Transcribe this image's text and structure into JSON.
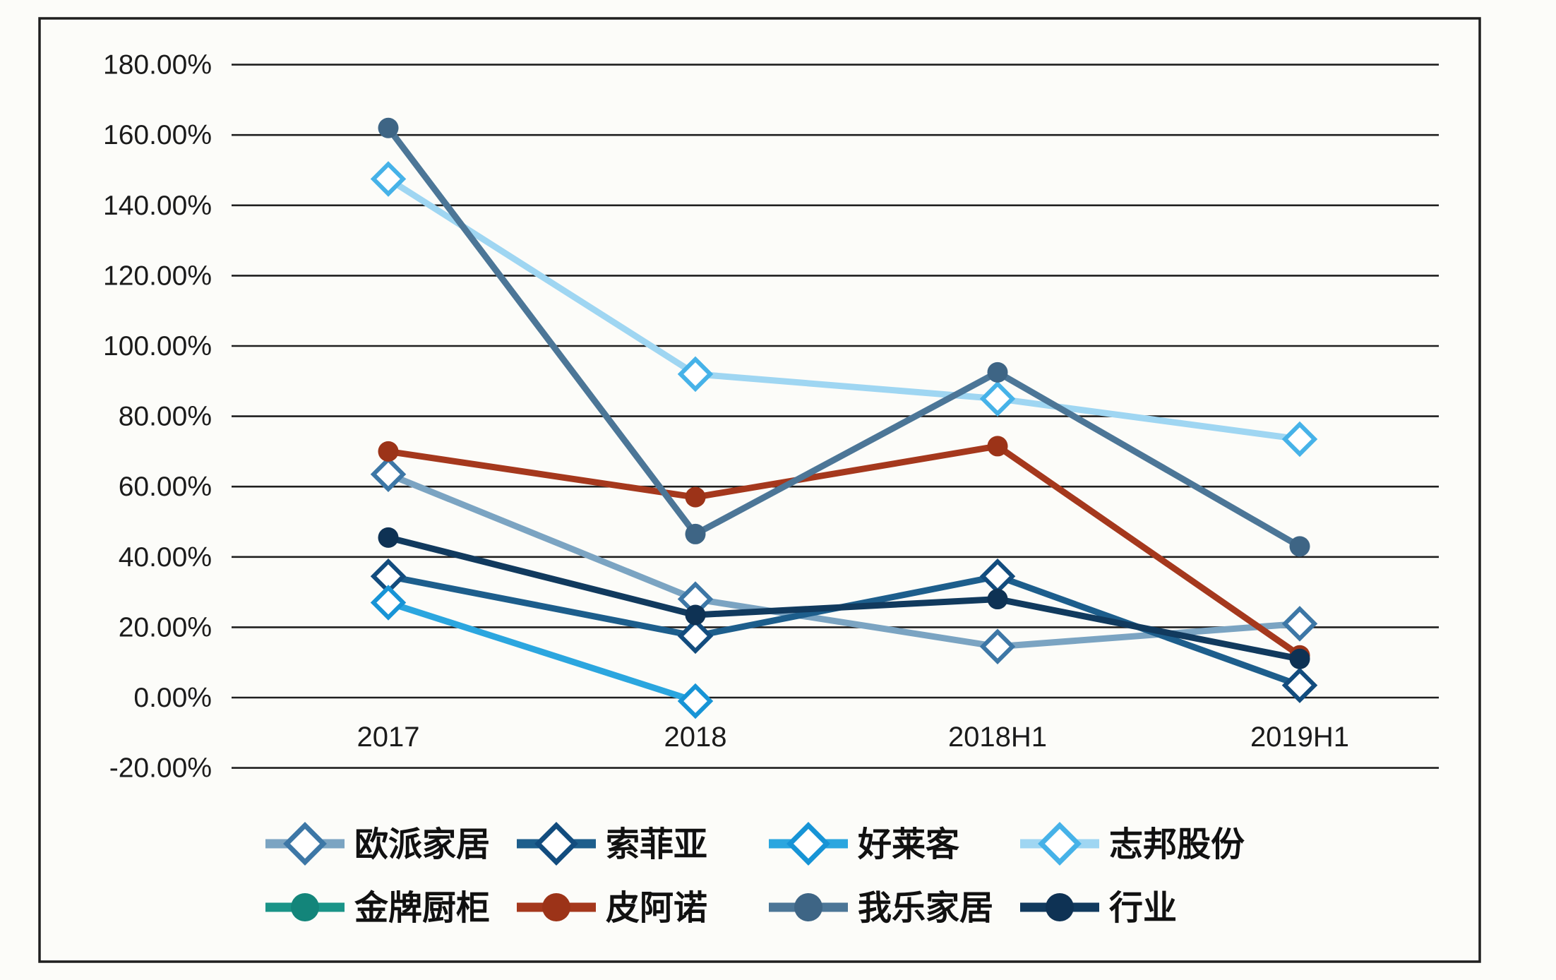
{
  "chart_data": {
    "type": "line",
    "title": "",
    "xlabel": "",
    "ylabel": "",
    "categories": [
      "2017",
      "2018",
      "2018H1",
      "2019H1"
    ],
    "series": [
      {
        "name": "欧派家居",
        "color": "#7BA4C2",
        "marker": "diamond",
        "marker_color": "#3D77A6",
        "values": [
          63.5,
          28,
          14.5,
          21
        ]
      },
      {
        "name": "索菲亚",
        "color": "#1D5E8C",
        "marker": "diamond",
        "marker_color": "#124C7E",
        "values": [
          34.5,
          17.5,
          34.5,
          3.5
        ]
      },
      {
        "name": "好莱客",
        "color": "#2BA6DF",
        "marker": "diamond",
        "marker_color": "#1794D6",
        "values": [
          27,
          -1,
          null,
          null
        ]
      },
      {
        "name": "志邦股份",
        "color": "#9FD6F2",
        "marker": "diamond",
        "marker_color": "#46B2E8",
        "values": [
          147.5,
          92,
          85,
          73.5
        ]
      },
      {
        "name": "金牌厨柜",
        "color": "#1A9488",
        "marker": "circle",
        "marker_color": "#13857A",
        "values": [
          null,
          null,
          null,
          null
        ]
      },
      {
        "name": "皮阿诺",
        "color": "#A5381D",
        "marker": "circle",
        "marker_color": "#9C3318",
        "values": [
          70,
          57,
          71.5,
          12
        ]
      },
      {
        "name": "我乐家居",
        "color": "#4C7697",
        "marker": "circle",
        "marker_color": "#3E6585",
        "values": [
          162,
          46.5,
          92.5,
          43
        ]
      },
      {
        "name": "行业",
        "color": "#113A5E",
        "marker": "circle",
        "marker_color": "#0E3254",
        "values": [
          45.5,
          23.5,
          28,
          11
        ]
      }
    ],
    "ylim": [
      -20,
      180
    ],
    "y_step": 20,
    "y_tick_labels": [
      "180.00%",
      "160.00%",
      "140.00%",
      "120.00%",
      "100.00%",
      "80.00%",
      "60.00%",
      "40.00%",
      "20.00%",
      "0.00%",
      "-20.00%"
    ],
    "grid": true,
    "grid_color": "#1f1f1f",
    "frame_color": "#1f1f1f",
    "axis_text_color": "#1b1b1b",
    "legend_position": "bottom",
    "legend_rows": [
      [
        "欧派家居",
        "索菲亚",
        "好莱客",
        "志邦股份"
      ],
      [
        "金牌厨柜",
        "皮阿诺",
        "我乐家居",
        "行业"
      ]
    ]
  }
}
